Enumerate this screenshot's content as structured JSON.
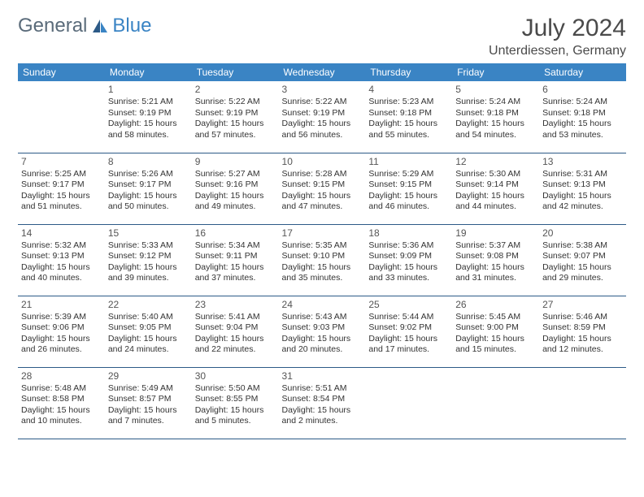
{
  "logo": {
    "text1": "General",
    "text2": "Blue"
  },
  "title": "July 2024",
  "location": "Unterdiessen, Germany",
  "colors": {
    "header_bg": "#3a84c4",
    "header_text": "#ffffff",
    "border": "#2c5a87",
    "logo_gray": "#5a6b7a",
    "logo_blue": "#3a84c4"
  },
  "day_headers": [
    "Sunday",
    "Monday",
    "Tuesday",
    "Wednesday",
    "Thursday",
    "Friday",
    "Saturday"
  ],
  "weeks": [
    [
      {
        "day": "",
        "sunrise": "",
        "sunset": "",
        "daylight": ""
      },
      {
        "day": "1",
        "sunrise": "Sunrise: 5:21 AM",
        "sunset": "Sunset: 9:19 PM",
        "daylight": "Daylight: 15 hours and 58 minutes."
      },
      {
        "day": "2",
        "sunrise": "Sunrise: 5:22 AM",
        "sunset": "Sunset: 9:19 PM",
        "daylight": "Daylight: 15 hours and 57 minutes."
      },
      {
        "day": "3",
        "sunrise": "Sunrise: 5:22 AM",
        "sunset": "Sunset: 9:19 PM",
        "daylight": "Daylight: 15 hours and 56 minutes."
      },
      {
        "day": "4",
        "sunrise": "Sunrise: 5:23 AM",
        "sunset": "Sunset: 9:18 PM",
        "daylight": "Daylight: 15 hours and 55 minutes."
      },
      {
        "day": "5",
        "sunrise": "Sunrise: 5:24 AM",
        "sunset": "Sunset: 9:18 PM",
        "daylight": "Daylight: 15 hours and 54 minutes."
      },
      {
        "day": "6",
        "sunrise": "Sunrise: 5:24 AM",
        "sunset": "Sunset: 9:18 PM",
        "daylight": "Daylight: 15 hours and 53 minutes."
      }
    ],
    [
      {
        "day": "7",
        "sunrise": "Sunrise: 5:25 AM",
        "sunset": "Sunset: 9:17 PM",
        "daylight": "Daylight: 15 hours and 51 minutes."
      },
      {
        "day": "8",
        "sunrise": "Sunrise: 5:26 AM",
        "sunset": "Sunset: 9:17 PM",
        "daylight": "Daylight: 15 hours and 50 minutes."
      },
      {
        "day": "9",
        "sunrise": "Sunrise: 5:27 AM",
        "sunset": "Sunset: 9:16 PM",
        "daylight": "Daylight: 15 hours and 49 minutes."
      },
      {
        "day": "10",
        "sunrise": "Sunrise: 5:28 AM",
        "sunset": "Sunset: 9:15 PM",
        "daylight": "Daylight: 15 hours and 47 minutes."
      },
      {
        "day": "11",
        "sunrise": "Sunrise: 5:29 AM",
        "sunset": "Sunset: 9:15 PM",
        "daylight": "Daylight: 15 hours and 46 minutes."
      },
      {
        "day": "12",
        "sunrise": "Sunrise: 5:30 AM",
        "sunset": "Sunset: 9:14 PM",
        "daylight": "Daylight: 15 hours and 44 minutes."
      },
      {
        "day": "13",
        "sunrise": "Sunrise: 5:31 AM",
        "sunset": "Sunset: 9:13 PM",
        "daylight": "Daylight: 15 hours and 42 minutes."
      }
    ],
    [
      {
        "day": "14",
        "sunrise": "Sunrise: 5:32 AM",
        "sunset": "Sunset: 9:13 PM",
        "daylight": "Daylight: 15 hours and 40 minutes."
      },
      {
        "day": "15",
        "sunrise": "Sunrise: 5:33 AM",
        "sunset": "Sunset: 9:12 PM",
        "daylight": "Daylight: 15 hours and 39 minutes."
      },
      {
        "day": "16",
        "sunrise": "Sunrise: 5:34 AM",
        "sunset": "Sunset: 9:11 PM",
        "daylight": "Daylight: 15 hours and 37 minutes."
      },
      {
        "day": "17",
        "sunrise": "Sunrise: 5:35 AM",
        "sunset": "Sunset: 9:10 PM",
        "daylight": "Daylight: 15 hours and 35 minutes."
      },
      {
        "day": "18",
        "sunrise": "Sunrise: 5:36 AM",
        "sunset": "Sunset: 9:09 PM",
        "daylight": "Daylight: 15 hours and 33 minutes."
      },
      {
        "day": "19",
        "sunrise": "Sunrise: 5:37 AM",
        "sunset": "Sunset: 9:08 PM",
        "daylight": "Daylight: 15 hours and 31 minutes."
      },
      {
        "day": "20",
        "sunrise": "Sunrise: 5:38 AM",
        "sunset": "Sunset: 9:07 PM",
        "daylight": "Daylight: 15 hours and 29 minutes."
      }
    ],
    [
      {
        "day": "21",
        "sunrise": "Sunrise: 5:39 AM",
        "sunset": "Sunset: 9:06 PM",
        "daylight": "Daylight: 15 hours and 26 minutes."
      },
      {
        "day": "22",
        "sunrise": "Sunrise: 5:40 AM",
        "sunset": "Sunset: 9:05 PM",
        "daylight": "Daylight: 15 hours and 24 minutes."
      },
      {
        "day": "23",
        "sunrise": "Sunrise: 5:41 AM",
        "sunset": "Sunset: 9:04 PM",
        "daylight": "Daylight: 15 hours and 22 minutes."
      },
      {
        "day": "24",
        "sunrise": "Sunrise: 5:43 AM",
        "sunset": "Sunset: 9:03 PM",
        "daylight": "Daylight: 15 hours and 20 minutes."
      },
      {
        "day": "25",
        "sunrise": "Sunrise: 5:44 AM",
        "sunset": "Sunset: 9:02 PM",
        "daylight": "Daylight: 15 hours and 17 minutes."
      },
      {
        "day": "26",
        "sunrise": "Sunrise: 5:45 AM",
        "sunset": "Sunset: 9:00 PM",
        "daylight": "Daylight: 15 hours and 15 minutes."
      },
      {
        "day": "27",
        "sunrise": "Sunrise: 5:46 AM",
        "sunset": "Sunset: 8:59 PM",
        "daylight": "Daylight: 15 hours and 12 minutes."
      }
    ],
    [
      {
        "day": "28",
        "sunrise": "Sunrise: 5:48 AM",
        "sunset": "Sunset: 8:58 PM",
        "daylight": "Daylight: 15 hours and 10 minutes."
      },
      {
        "day": "29",
        "sunrise": "Sunrise: 5:49 AM",
        "sunset": "Sunset: 8:57 PM",
        "daylight": "Daylight: 15 hours and 7 minutes."
      },
      {
        "day": "30",
        "sunrise": "Sunrise: 5:50 AM",
        "sunset": "Sunset: 8:55 PM",
        "daylight": "Daylight: 15 hours and 5 minutes."
      },
      {
        "day": "31",
        "sunrise": "Sunrise: 5:51 AM",
        "sunset": "Sunset: 8:54 PM",
        "daylight": "Daylight: 15 hours and 2 minutes."
      },
      {
        "day": "",
        "sunrise": "",
        "sunset": "",
        "daylight": ""
      },
      {
        "day": "",
        "sunrise": "",
        "sunset": "",
        "daylight": ""
      },
      {
        "day": "",
        "sunrise": "",
        "sunset": "",
        "daylight": ""
      }
    ]
  ]
}
